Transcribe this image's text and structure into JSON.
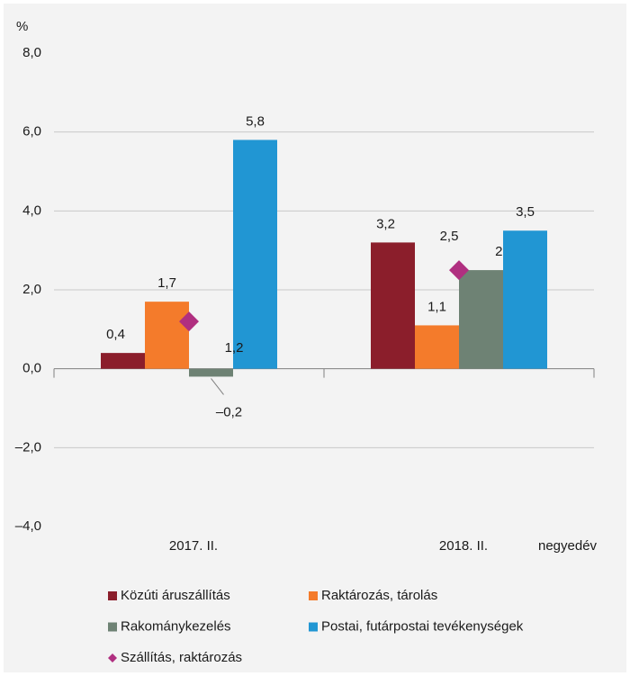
{
  "chart_data": {
    "type": "bar",
    "y_unit": "%",
    "x_label": "negyedév",
    "categories": [
      "2017. II.",
      "2018. II."
    ],
    "ylim": [
      -4,
      8
    ],
    "yticks": [
      {
        "value": -4,
        "label": "–4,0"
      },
      {
        "value": -2,
        "label": "–2,0"
      },
      {
        "value": 0,
        "label": "0,0"
      },
      {
        "value": 2,
        "label": "2,0"
      },
      {
        "value": 4,
        "label": "4,0"
      },
      {
        "value": 6,
        "label": "6,0"
      },
      {
        "value": 8,
        "label": "8,0"
      }
    ],
    "grid": true,
    "series": [
      {
        "name": "Közúti áruszállítás",
        "color": "#8b1e2b",
        "values": [
          0.4,
          3.2
        ],
        "value_labels": [
          "0,4",
          "3,2"
        ]
      },
      {
        "name": "Raktározás, tárolás",
        "color": "#f47b2b",
        "values": [
          1.7,
          1.1
        ],
        "value_labels": [
          "1,7",
          "1,1"
        ]
      },
      {
        "name": "Rakománykezelés",
        "color": "#6e8274",
        "values": [
          -0.2,
          2.5
        ],
        "value_labels": [
          "–0,2",
          "2,5"
        ]
      },
      {
        "name": "Postai, futárpostai tevékenységek",
        "color": "#2196d3",
        "values": [
          5.8,
          3.5
        ],
        "value_labels": [
          "5,8",
          "3,5"
        ]
      },
      {
        "name": "Szállítás, raktározás",
        "color": "#b02f80",
        "marker": "diamond",
        "values": [
          1.2,
          2.5
        ],
        "value_labels": [
          "1,2",
          "2,5"
        ]
      }
    ]
  }
}
